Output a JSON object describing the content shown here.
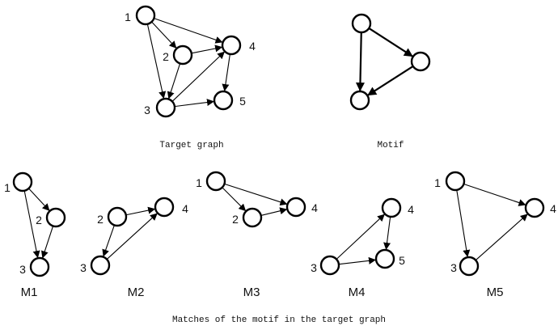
{
  "captions": {
    "target": "Target graph",
    "motif": "Motif",
    "matches": "Matches of the motif in the target graph"
  },
  "target_graph": {
    "nodes": [
      "1",
      "2",
      "3",
      "4",
      "5"
    ],
    "edges": [
      [
        "1",
        "2"
      ],
      [
        "1",
        "3"
      ],
      [
        "1",
        "4"
      ],
      [
        "2",
        "3"
      ],
      [
        "2",
        "4"
      ],
      [
        "3",
        "4"
      ],
      [
        "3",
        "5"
      ],
      [
        "4",
        "5"
      ]
    ]
  },
  "motif": {
    "nodes": [
      "",
      "",
      ""
    ],
    "edges": [
      [
        "a",
        "b"
      ],
      [
        "a",
        "c"
      ],
      [
        "b",
        "c"
      ]
    ]
  },
  "matches": [
    {
      "label": "M1",
      "nodes": [
        "1",
        "2",
        "3"
      ],
      "edges": [
        [
          "1",
          "2"
        ],
        [
          "1",
          "3"
        ],
        [
          "2",
          "3"
        ]
      ]
    },
    {
      "label": "M2",
      "nodes": [
        "2",
        "4",
        "3"
      ],
      "edges": [
        [
          "2",
          "4"
        ],
        [
          "2",
          "3"
        ],
        [
          "3",
          "4"
        ]
      ]
    },
    {
      "label": "M3",
      "nodes": [
        "1",
        "2",
        "4"
      ],
      "edges": [
        [
          "1",
          "2"
        ],
        [
          "1",
          "4"
        ],
        [
          "2",
          "4"
        ]
      ]
    },
    {
      "label": "M4",
      "nodes": [
        "4",
        "3",
        "5"
      ],
      "edges": [
        [
          "3",
          "4"
        ],
        [
          "3",
          "5"
        ],
        [
          "4",
          "5"
        ]
      ]
    },
    {
      "label": "M5",
      "nodes": [
        "1",
        "4",
        "3"
      ],
      "edges": [
        [
          "1",
          "4"
        ],
        [
          "1",
          "3"
        ],
        [
          "3",
          "4"
        ]
      ]
    }
  ]
}
